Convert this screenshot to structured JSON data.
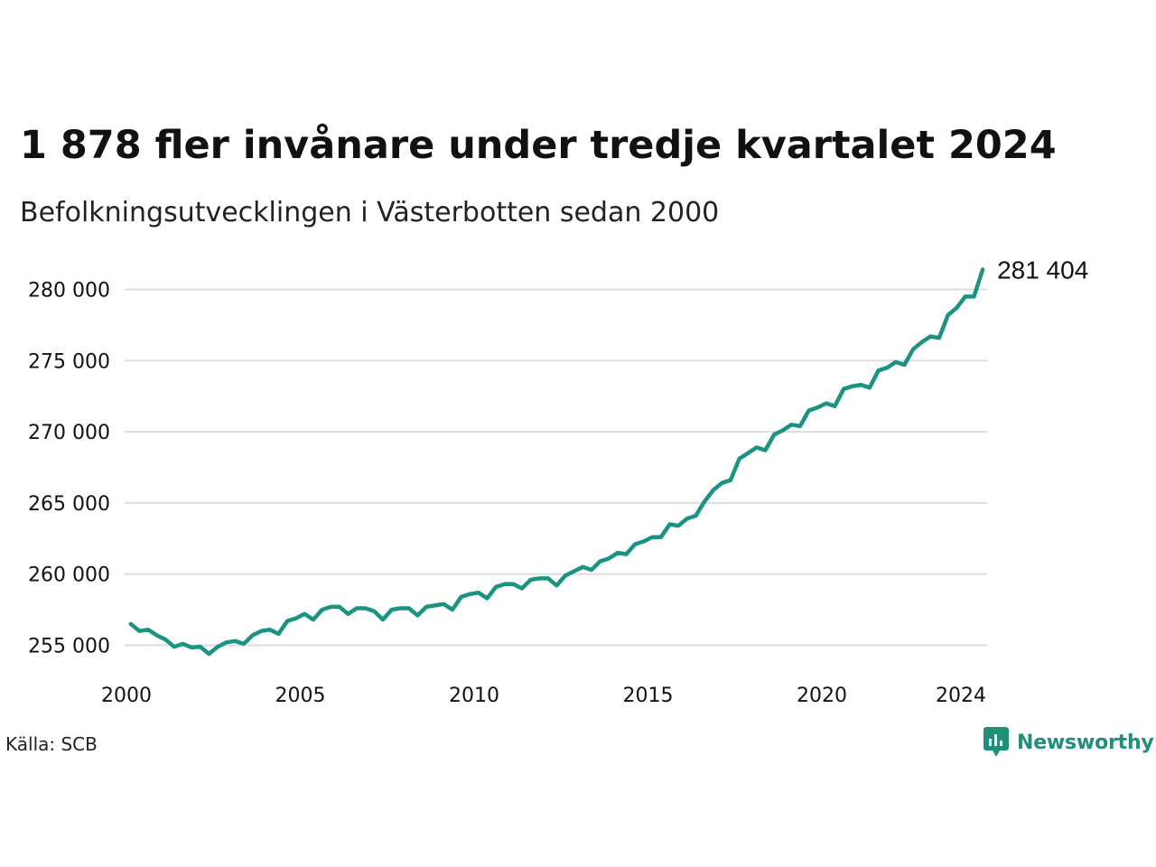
{
  "chart_data": {
    "type": "line",
    "title": "1 878 fler invånare under tredje kvartalet 2024",
    "subtitle": "Befolkningsutvecklingen i Västerbotten sedan 2000",
    "source": "Källa: SCB",
    "brand": "Newsworthy",
    "x_ticks": [
      2000,
      2005,
      2010,
      2015,
      2020,
      2024
    ],
    "x_tick_labels": [
      "2000",
      "2005",
      "2010",
      "2015",
      "2020",
      "2024"
    ],
    "y_ticks": [
      255000,
      260000,
      265000,
      270000,
      275000,
      280000
    ],
    "y_tick_labels": [
      "255 000",
      "260 000",
      "265 000",
      "270 000",
      "275 000",
      "280 000"
    ],
    "ylim": [
      254500,
      281500
    ],
    "grid": true,
    "legend": "none",
    "colors": {
      "line": "#1a9480",
      "grid": "#dddddd"
    },
    "end_label": "281 404",
    "series": [
      {
        "start": "2000-Q1",
        "frequency": "quarterly",
        "values": [
          256500,
          256000,
          256100,
          255700,
          255400,
          254900,
          255100,
          254850,
          254900,
          254400,
          254900,
          255200,
          255300,
          255100,
          255700,
          256000,
          256100,
          255800,
          256700,
          256900,
          257200,
          256800,
          257500,
          257700,
          257700,
          257200,
          257600,
          257600,
          257400,
          256800,
          257500,
          257600,
          257600,
          257100,
          257700,
          257800,
          257900,
          257500,
          258400,
          258600,
          258700,
          258300,
          259100,
          259300,
          259300,
          259000,
          259600,
          259700,
          259700,
          259200,
          259900,
          260200,
          260500,
          260300,
          260900,
          261100,
          261500,
          261400,
          262100,
          262300,
          262600,
          262600,
          263500,
          263400,
          263900,
          264100,
          265100,
          265900,
          266400,
          266600,
          268100,
          268500,
          268900,
          268700,
          269800,
          270100,
          270500,
          270400,
          271500,
          271700,
          272000,
          271800,
          273000,
          273200,
          273300,
          273100,
          274300,
          274500,
          274900,
          274700,
          275800,
          276300,
          276700,
          276600,
          278200,
          278700,
          279500,
          279500,
          281404
        ]
      }
    ]
  }
}
